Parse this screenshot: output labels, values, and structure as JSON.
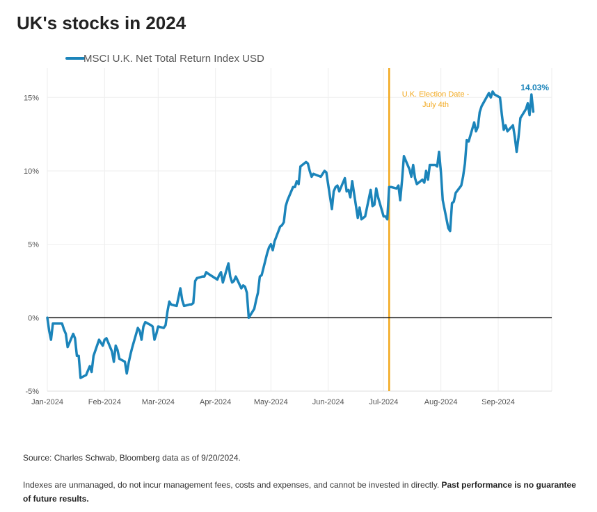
{
  "title": "UK's stocks in 2024",
  "colors": {
    "series": "#1b84ba",
    "annotation": "#f2a81d",
    "zero_line": "#111111",
    "grid": "#eeeeee"
  },
  "chart_data": {
    "type": "line",
    "title": "UK's stocks in 2024",
    "xlabel": "",
    "ylabel": "",
    "x_tick_labels": [
      "Jan-2024",
      "Feb-2024",
      "Mar-2024",
      "Apr-2024",
      "May-2024",
      "Jun-2024",
      "Jul-2024",
      "Aug-2024",
      "Sep-2024"
    ],
    "y_tick_labels": [
      "-5%",
      "0%",
      "5%",
      "10%",
      "15%"
    ],
    "ylim": [
      -5,
      17
    ],
    "xlim": [
      "2024-01-01",
      "2024-09-30"
    ],
    "grid": true,
    "legend": {
      "position": "top-left",
      "entries": [
        "MSCI U.K. Net Total Return Index USD"
      ]
    },
    "series": [
      {
        "name": "MSCI U.K. Net Total Return Index USD",
        "unit": "%",
        "points": [
          [
            "2024-01-01",
            0.0
          ],
          [
            "2024-01-02",
            -0.9
          ],
          [
            "2024-01-03",
            -1.5
          ],
          [
            "2024-01-04",
            -0.4
          ],
          [
            "2024-01-05",
            -0.4
          ],
          [
            "2024-01-08",
            -0.4
          ],
          [
            "2024-01-09",
            -0.4
          ],
          [
            "2024-01-10",
            -0.8
          ],
          [
            "2024-01-11",
            -1.1
          ],
          [
            "2024-01-12",
            -2.0
          ],
          [
            "2024-01-15",
            -1.1
          ],
          [
            "2024-01-16",
            -1.4
          ],
          [
            "2024-01-17",
            -2.6
          ],
          [
            "2024-01-18",
            -2.6
          ],
          [
            "2024-01-19",
            -4.1
          ],
          [
            "2024-01-22",
            -3.9
          ],
          [
            "2024-01-23",
            -3.6
          ],
          [
            "2024-01-24",
            -3.3
          ],
          [
            "2024-01-25",
            -3.7
          ],
          [
            "2024-01-26",
            -2.6
          ],
          [
            "2024-01-29",
            -1.5
          ],
          [
            "2024-01-30",
            -1.7
          ],
          [
            "2024-01-31",
            -1.9
          ],
          [
            "2024-02-01",
            -1.5
          ],
          [
            "2024-02-02",
            -1.4
          ],
          [
            "2024-02-05",
            -2.3
          ],
          [
            "2024-02-06",
            -3.0
          ],
          [
            "2024-02-07",
            -1.9
          ],
          [
            "2024-02-08",
            -2.2
          ],
          [
            "2024-02-09",
            -2.8
          ],
          [
            "2024-02-12",
            -3.0
          ],
          [
            "2024-02-13",
            -3.8
          ],
          [
            "2024-02-14",
            -3.1
          ],
          [
            "2024-02-15",
            -2.5
          ],
          [
            "2024-02-16",
            -2.0
          ],
          [
            "2024-02-19",
            -0.7
          ],
          [
            "2024-02-20",
            -0.9
          ],
          [
            "2024-02-21",
            -1.5
          ],
          [
            "2024-02-22",
            -0.6
          ],
          [
            "2024-02-23",
            -0.3
          ],
          [
            "2024-02-26",
            -0.5
          ],
          [
            "2024-02-27",
            -0.6
          ],
          [
            "2024-02-28",
            -1.5
          ],
          [
            "2024-02-29",
            -1.1
          ],
          [
            "2024-03-01",
            -0.6
          ],
          [
            "2024-03-04",
            -0.7
          ],
          [
            "2024-03-05",
            -0.5
          ],
          [
            "2024-03-06",
            0.4
          ],
          [
            "2024-03-07",
            1.1
          ],
          [
            "2024-03-08",
            0.9
          ],
          [
            "2024-03-11",
            0.8
          ],
          [
            "2024-03-12",
            1.4
          ],
          [
            "2024-03-13",
            2.0
          ],
          [
            "2024-03-14",
            1.2
          ],
          [
            "2024-03-15",
            0.8
          ],
          [
            "2024-03-18",
            0.9
          ],
          [
            "2024-03-19",
            0.9
          ],
          [
            "2024-03-20",
            1.0
          ],
          [
            "2024-03-21",
            2.5
          ],
          [
            "2024-03-22",
            2.7
          ],
          [
            "2024-03-25",
            2.8
          ],
          [
            "2024-03-26",
            2.8
          ],
          [
            "2024-03-27",
            3.1
          ],
          [
            "2024-03-28",
            3.0
          ],
          [
            "2024-04-02",
            2.6
          ],
          [
            "2024-04-03",
            2.9
          ],
          [
            "2024-04-04",
            3.1
          ],
          [
            "2024-04-05",
            2.4
          ],
          [
            "2024-04-08",
            3.7
          ],
          [
            "2024-04-09",
            2.8
          ],
          [
            "2024-04-10",
            2.4
          ],
          [
            "2024-04-11",
            2.5
          ],
          [
            "2024-04-12",
            2.8
          ],
          [
            "2024-04-15",
            2.0
          ],
          [
            "2024-04-16",
            2.2
          ],
          [
            "2024-04-17",
            2.1
          ],
          [
            "2024-04-18",
            1.7
          ],
          [
            "2024-04-19",
            0.0
          ],
          [
            "2024-04-22",
            0.6
          ],
          [
            "2024-04-23",
            1.2
          ],
          [
            "2024-04-24",
            1.7
          ],
          [
            "2024-04-25",
            2.8
          ],
          [
            "2024-04-26",
            2.9
          ],
          [
            "2024-04-29",
            4.4
          ],
          [
            "2024-04-30",
            4.8
          ],
          [
            "2024-05-01",
            5.0
          ],
          [
            "2024-05-02",
            4.6
          ],
          [
            "2024-05-03",
            5.2
          ],
          [
            "2024-05-06",
            6.2
          ],
          [
            "2024-05-07",
            6.3
          ],
          [
            "2024-05-08",
            6.5
          ],
          [
            "2024-05-09",
            7.6
          ],
          [
            "2024-05-10",
            8.0
          ],
          [
            "2024-05-13",
            8.9
          ],
          [
            "2024-05-14",
            8.9
          ],
          [
            "2024-05-15",
            9.3
          ],
          [
            "2024-05-16",
            9.1
          ],
          [
            "2024-05-17",
            10.3
          ],
          [
            "2024-05-20",
            10.6
          ],
          [
            "2024-05-21",
            10.5
          ],
          [
            "2024-05-22",
            10.0
          ],
          [
            "2024-05-23",
            9.6
          ],
          [
            "2024-05-24",
            9.8
          ],
          [
            "2024-05-28",
            9.6
          ],
          [
            "2024-05-29",
            9.8
          ],
          [
            "2024-05-30",
            10.0
          ],
          [
            "2024-05-31",
            9.9
          ],
          [
            "2024-06-03",
            7.4
          ],
          [
            "2024-06-04",
            8.6
          ],
          [
            "2024-06-05",
            8.9
          ],
          [
            "2024-06-06",
            9.0
          ],
          [
            "2024-06-07",
            8.6
          ],
          [
            "2024-06-10",
            9.5
          ],
          [
            "2024-06-11",
            8.6
          ],
          [
            "2024-06-12",
            8.7
          ],
          [
            "2024-06-13",
            8.2
          ],
          [
            "2024-06-14",
            9.3
          ],
          [
            "2024-06-17",
            6.8
          ],
          [
            "2024-06-18",
            7.5
          ],
          [
            "2024-06-19",
            6.7
          ],
          [
            "2024-06-20",
            6.8
          ],
          [
            "2024-06-21",
            6.9
          ],
          [
            "2024-06-24",
            8.7
          ],
          [
            "2024-06-25",
            7.6
          ],
          [
            "2024-06-26",
            7.7
          ],
          [
            "2024-06-27",
            8.8
          ],
          [
            "2024-06-28",
            8.2
          ],
          [
            "2024-07-01",
            6.9
          ],
          [
            "2024-07-02",
            6.9
          ],
          [
            "2024-07-03",
            6.7
          ],
          [
            "2024-07-04",
            8.9
          ],
          [
            "2024-07-05",
            8.9
          ],
          [
            "2024-07-08",
            8.8
          ],
          [
            "2024-07-09",
            9.0
          ],
          [
            "2024-07-10",
            8.0
          ],
          [
            "2024-07-11",
            9.4
          ],
          [
            "2024-07-12",
            11.0
          ],
          [
            "2024-07-15",
            10.1
          ],
          [
            "2024-07-16",
            9.6
          ],
          [
            "2024-07-17",
            10.4
          ],
          [
            "2024-07-18",
            9.5
          ],
          [
            "2024-07-19",
            9.1
          ],
          [
            "2024-07-22",
            9.4
          ],
          [
            "2024-07-23",
            9.2
          ],
          [
            "2024-07-24",
            10.0
          ],
          [
            "2024-07-25",
            9.4
          ],
          [
            "2024-07-26",
            10.4
          ],
          [
            "2024-07-29",
            10.4
          ],
          [
            "2024-07-30",
            10.3
          ],
          [
            "2024-07-31",
            11.3
          ],
          [
            "2024-08-01",
            9.9
          ],
          [
            "2024-08-02",
            8.0
          ],
          [
            "2024-08-05",
            6.1
          ],
          [
            "2024-08-06",
            5.9
          ],
          [
            "2024-08-07",
            7.8
          ],
          [
            "2024-08-08",
            7.9
          ],
          [
            "2024-08-09",
            8.5
          ],
          [
            "2024-08-12",
            9.0
          ],
          [
            "2024-08-13",
            9.6
          ],
          [
            "2024-08-14",
            10.5
          ],
          [
            "2024-08-15",
            12.1
          ],
          [
            "2024-08-16",
            12.0
          ],
          [
            "2024-08-19",
            13.3
          ],
          [
            "2024-08-20",
            12.7
          ],
          [
            "2024-08-21",
            13.0
          ],
          [
            "2024-08-22",
            14.0
          ],
          [
            "2024-08-23",
            14.4
          ],
          [
            "2024-08-27",
            15.3
          ],
          [
            "2024-08-28",
            15.0
          ],
          [
            "2024-08-29",
            15.4
          ],
          [
            "2024-08-30",
            15.2
          ],
          [
            "2024-09-02",
            15.0
          ],
          [
            "2024-09-03",
            13.8
          ],
          [
            "2024-09-04",
            12.8
          ],
          [
            "2024-09-05",
            13.1
          ],
          [
            "2024-09-06",
            12.7
          ],
          [
            "2024-09-09",
            13.1
          ],
          [
            "2024-09-10",
            12.3
          ],
          [
            "2024-09-11",
            11.3
          ],
          [
            "2024-09-12",
            12.3
          ],
          [
            "2024-09-13",
            13.6
          ],
          [
            "2024-09-16",
            14.2
          ],
          [
            "2024-09-17",
            14.6
          ],
          [
            "2024-09-18",
            13.8
          ],
          [
            "2024-09-19",
            15.2
          ],
          [
            "2024-09-20",
            14.03
          ]
        ]
      }
    ],
    "annotations": [
      {
        "type": "vertical-line",
        "x": "2024-07-04",
        "lines": [
          "U.K. Election Date -",
          "July 4th"
        ]
      },
      {
        "type": "end-label",
        "x": "2024-09-20",
        "y": 14.03,
        "text": "14.03%"
      }
    ]
  },
  "source": "Source: Charles Schwab, Bloomberg data as of 9/20/2024.",
  "disclaimer": {
    "text": "Indexes are unmanaged, do not incur management fees, costs and expenses, and cannot be invested in directly. ",
    "bold": "Past performance is no guarantee of future results."
  }
}
